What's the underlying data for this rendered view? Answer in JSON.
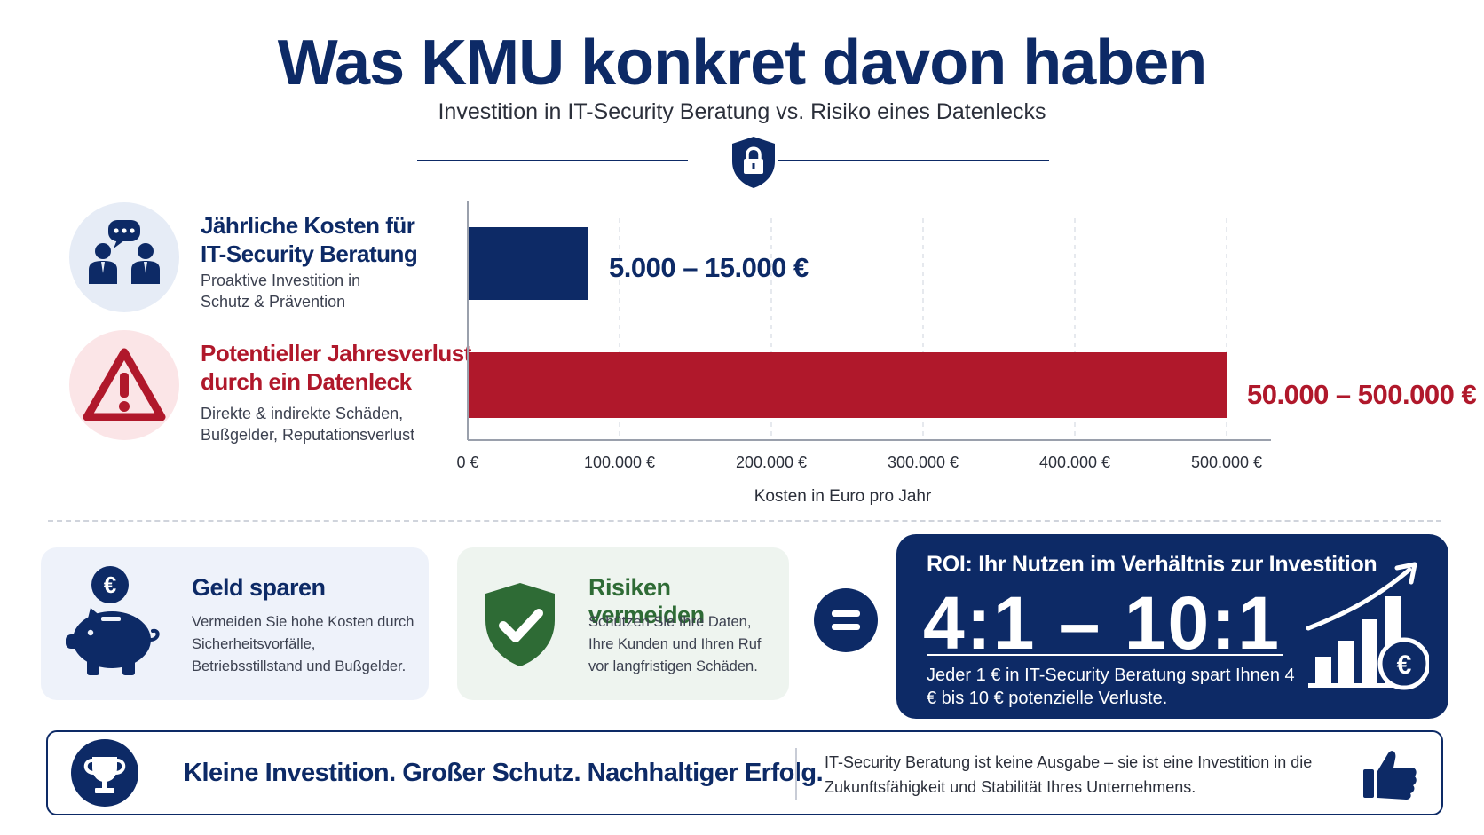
{
  "header": {
    "title": "Was KMU konkret davon haben",
    "subtitle": "Investition in IT-Security Beratung vs. Risiko eines Datenlecks"
  },
  "rows": [
    {
      "title_line1": "Jährliche Kosten für",
      "title_line2": "IT-Security Beratung",
      "desc_line1": "Proaktive Investition in",
      "desc_line2": "Schutz & Prävention",
      "icon": "consulting-people-icon"
    },
    {
      "title_line1": "Potentieller Jahresverlust",
      "title_line2": "durch ein Datenleck",
      "desc_line1": "Direkte & indirekte Schäden,",
      "desc_line2": "Bußgelder, Reputationsverlust",
      "icon": "warning-triangle-icon"
    }
  ],
  "chart_data": {
    "type": "bar",
    "orientation": "horizontal",
    "categories": [
      "Jährliche Kosten für IT-Security Beratung",
      "Potentieller Jahresverlust durch ein Datenleck"
    ],
    "ranges": [
      [
        5000,
        15000
      ],
      [
        50000,
        500000
      ]
    ],
    "values": [
      15000,
      500000
    ],
    "data_labels": [
      "5.000 – 15.000 €",
      "50.000 – 500.000 €"
    ],
    "colors": [
      "#0d2a66",
      "#b0182b"
    ],
    "xlabel": "Kosten in Euro pro Jahr",
    "xlim": [
      0,
      500000
    ],
    "xticks": [
      0,
      100000,
      200000,
      300000,
      400000,
      500000
    ],
    "xtick_labels": [
      "0 €",
      "100.000 €",
      "200.000 €",
      "300.000 €",
      "400.000 €",
      "500.000 €"
    ],
    "grid": "vertical-dashed",
    "legend": "none"
  },
  "cards": {
    "save": {
      "title": "Geld sparen",
      "text": "Vermeiden Sie hohe Kosten durch Sicherheitsvorfälle, Betriebsstillstand und Bußgelder.",
      "icon": "piggy-bank-euro-icon"
    },
    "risk": {
      "title": "Risiken vermeiden",
      "text": "Schützen Sie Ihre Daten, Ihre Kunden und Ihren Ruf vor langfristigen Schäden.",
      "icon": "shield-check-icon"
    }
  },
  "roi": {
    "heading": "ROI: Ihr Nutzen im Verhältnis zur Investition",
    "ratio": "4:1 – 10:1",
    "text": "Jeder 1 € in IT-Security Beratung spart Ihnen 4 € bis 10 € potenzielle Verluste.",
    "icon": "growth-chart-euro-icon"
  },
  "footer": {
    "slogan": "Kleine Investition. Großer Schutz. Nachhaltiger Erfolg.",
    "text": "IT-Security Beratung ist keine Ausgabe – sie ist eine Investition in die Zukunftsfähigkeit und Stabilität Ihres Unternehmens.",
    "icons": [
      "trophy-icon",
      "thumbs-up-icon"
    ]
  },
  "colors": {
    "navy": "#0d2a66",
    "red": "#b0182b",
    "green": "#2e6b35",
    "light_blue_bg": "#eef2fa",
    "light_green_bg": "#eef4ef"
  }
}
